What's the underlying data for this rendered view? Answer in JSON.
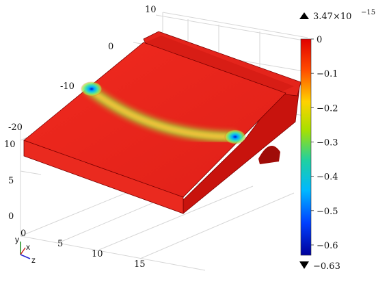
{
  "plot": {
    "axis_ticks": {
      "top_10": "10",
      "top_0": "0",
      "top_m10": "-10",
      "top_m20": "-20",
      "left_10": "10",
      "left_5": "5",
      "left_0": "0",
      "bottom_0": "0",
      "bottom_5": "5",
      "bottom_10": "10",
      "bottom_15": "15"
    },
    "triad": {
      "y": "y",
      "x": "x",
      "z": "z"
    }
  },
  "colorbar": {
    "max_label": "3.47×10",
    "max_exp": "−15",
    "min_label": "−0.63",
    "ticks": [
      "0",
      "−0.1",
      "−0.2",
      "−0.3",
      "−0.4",
      "−0.5",
      "−0.6"
    ],
    "tick_values": [
      0,
      -0.1,
      -0.2,
      -0.3,
      -0.4,
      -0.5,
      -0.6
    ],
    "range": [
      -0.63,
      3.47e-15
    ]
  },
  "colors": {
    "surface": "#e8281e",
    "surface_dark": "#b50f0a",
    "side": "#e0211a",
    "band_mid": "#9ad43a",
    "band_core": "#f0c030"
  }
}
